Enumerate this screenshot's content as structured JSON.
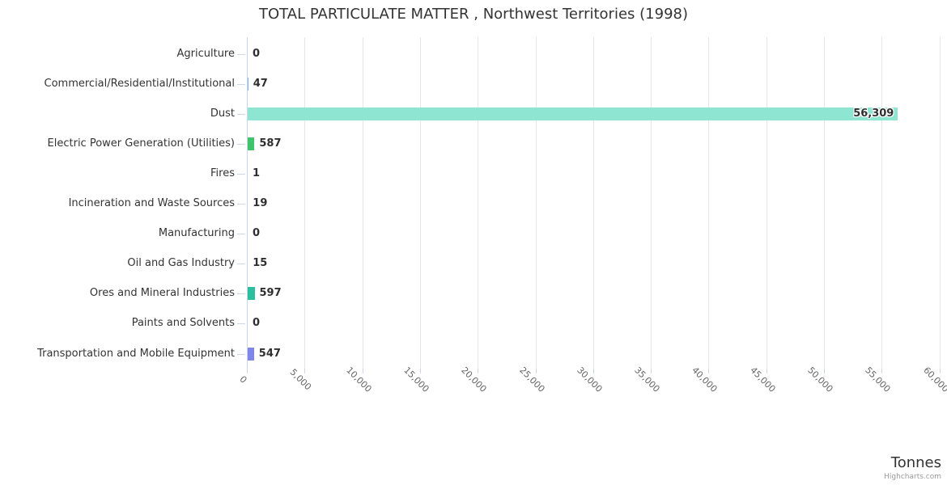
{
  "title": "TOTAL PARTICULATE MATTER , Northwest Territories (1998)",
  "credits": "Highcharts.com",
  "chart_data": {
    "type": "bar",
    "orientation": "horizontal",
    "title": "TOTAL PARTICULATE MATTER , Northwest Territories (1998)",
    "xlabel": "Tonnes",
    "ylabel": "",
    "categories": [
      "Agriculture",
      "Commercial/Residential/Institutional",
      "Dust",
      "Electric Power Generation (Utilities)",
      "Fires",
      "Incineration and Waste Sources",
      "Manufacturing",
      "Oil and Gas Industry",
      "Ores and Mineral Industries",
      "Paints and Solvents",
      "Transportation and Mobile Equipment"
    ],
    "values": [
      0,
      47,
      56309,
      587,
      1,
      19,
      0,
      15,
      597,
      0,
      547
    ],
    "value_labels": [
      "0",
      "47",
      "56,309",
      "587",
      "1",
      "19",
      "0",
      "15",
      "597",
      "0",
      "547"
    ],
    "bar_colors": [
      "#7cb5ec",
      "#7cb5ec",
      "#8ee5d2",
      "#3fc46c",
      "#7cb5ec",
      "#7cb5ec",
      "#7cb5ec",
      "#7cb5ec",
      "#2cbf9f",
      "#7cb5ec",
      "#8085e9"
    ],
    "xlim": [
      0,
      60000
    ],
    "tick_interval": 5000,
    "tick_labels": [
      "0",
      "5,000",
      "10,000",
      "15,000",
      "20,000",
      "25,000",
      "30,000",
      "35,000",
      "40,000",
      "45,000",
      "50,000",
      "55,000",
      "60,000"
    ],
    "grid": true,
    "legend": false
  },
  "colors": {
    "grid": "#e6e6e6",
    "axis": "#ccd6eb",
    "title": "#333333",
    "category_label": "#333333",
    "tick_label": "#666666",
    "value_label": "#2f2f2f",
    "credits": "#999999",
    "background": "#ffffff"
  }
}
